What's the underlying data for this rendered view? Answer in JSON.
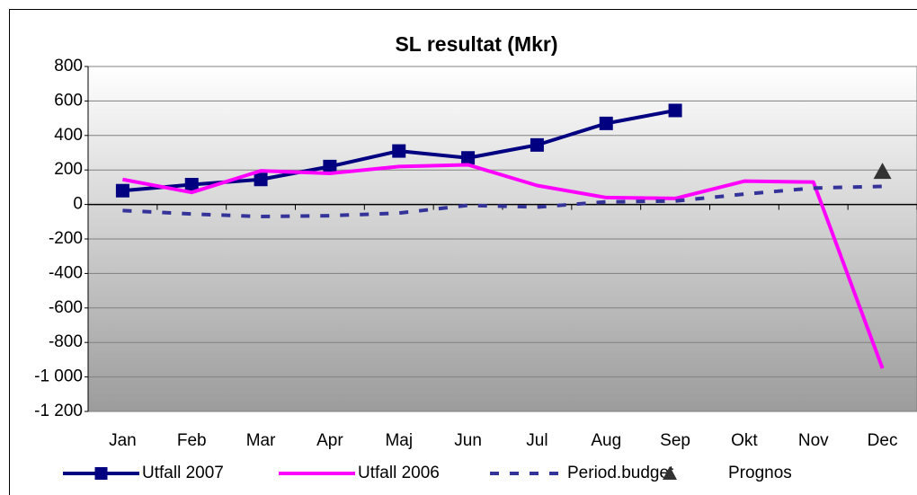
{
  "chart_data": {
    "type": "line",
    "title": "SL resultat (Mkr)",
    "categories": [
      "Jan",
      "Feb",
      "Mar",
      "Apr",
      "Maj",
      "Jun",
      "Jul",
      "Aug",
      "Sep",
      "Okt",
      "Nov",
      "Dec"
    ],
    "series": [
      {
        "name": "Utfall 2007",
        "color": "#000080",
        "marker": "square",
        "line": true,
        "dashed": false,
        "values": [
          80,
          115,
          145,
          220,
          310,
          270,
          345,
          470,
          545,
          null,
          null,
          null
        ]
      },
      {
        "name": "Utfall 2006",
        "color": "#ff00ff",
        "marker": "none",
        "line": true,
        "dashed": false,
        "values": [
          145,
          70,
          195,
          180,
          220,
          230,
          110,
          40,
          35,
          135,
          130,
          -950
        ]
      },
      {
        "name": "Period.budget",
        "color": "#333399",
        "marker": "none",
        "line": true,
        "dashed": true,
        "values": [
          -35,
          -55,
          -70,
          -65,
          -50,
          -5,
          -15,
          15,
          20,
          60,
          95,
          105
        ]
      },
      {
        "name": "Prognos",
        "color": "#333333",
        "marker": "triangle",
        "line": false,
        "dashed": false,
        "values": [
          null,
          null,
          null,
          null,
          null,
          null,
          null,
          null,
          null,
          null,
          null,
          190
        ]
      }
    ],
    "ylim": [
      -1200,
      800
    ],
    "yticks": [
      {
        "value": -1200,
        "label": "-1 200"
      },
      {
        "value": -1000,
        "label": "-1 000"
      },
      -800,
      -600,
      -400,
      -200,
      0,
      200,
      400,
      600,
      800
    ],
    "grid": true,
    "legend": "bottom"
  }
}
